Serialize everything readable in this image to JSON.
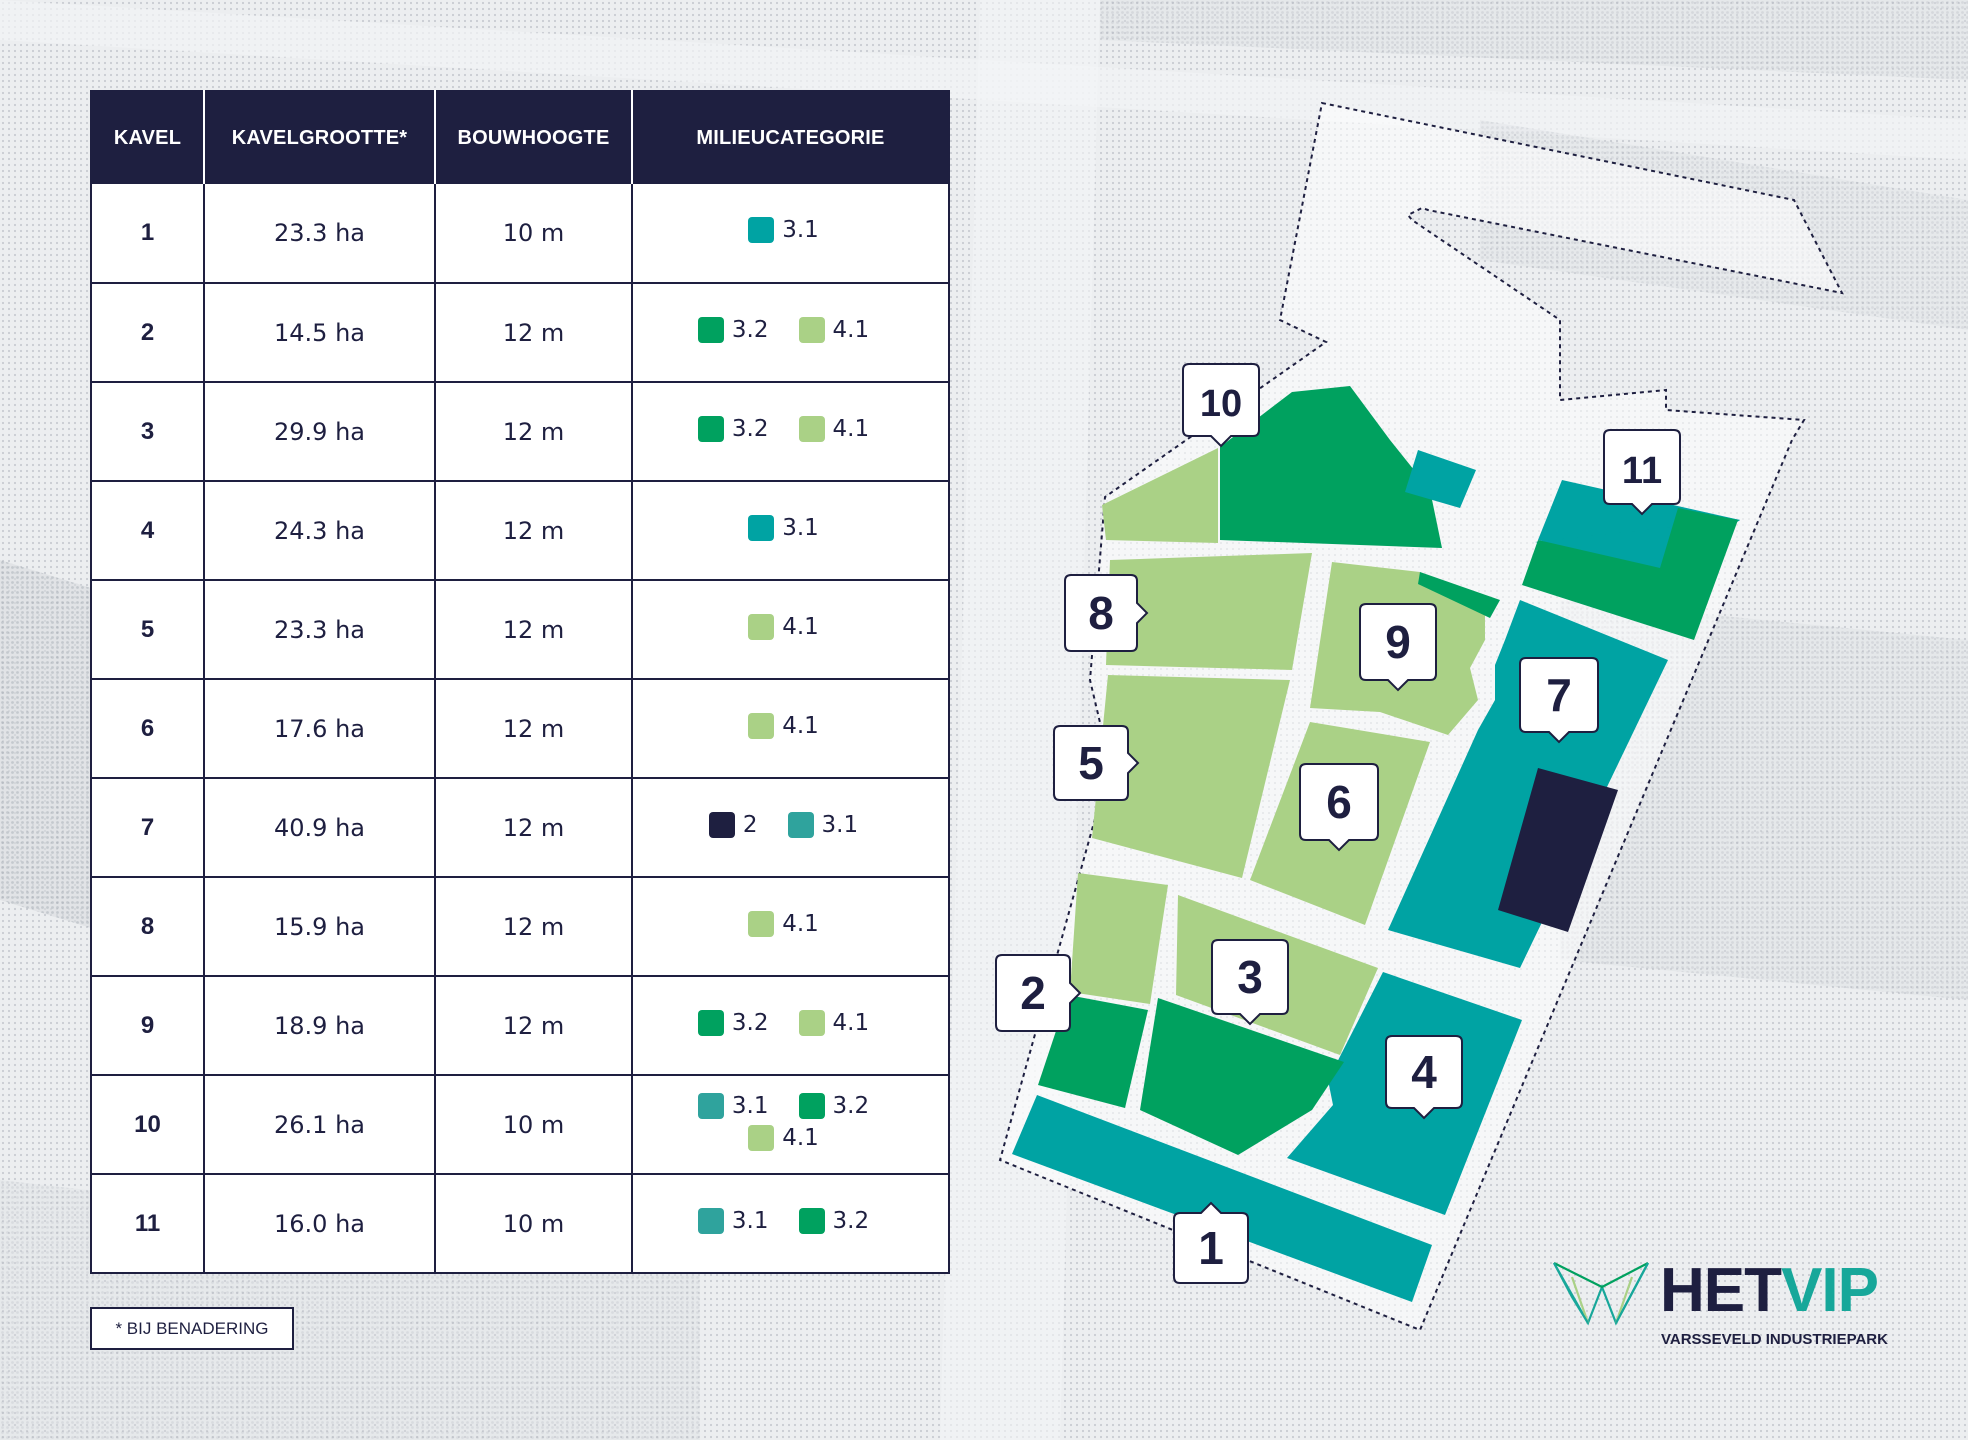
{
  "table": {
    "headers": [
      "KAVEL",
      "KAVELGROOTTE*",
      "BOUWHOOGTE",
      "MILIEUCATEGORIE"
    ],
    "rows": [
      {
        "kavel": "1",
        "size": "23.3 ha",
        "height": "10 m",
        "cats": [
          "3.1"
        ]
      },
      {
        "kavel": "2",
        "size": "14.5 ha",
        "height": "12 m",
        "cats": [
          "3.2",
          "4.1"
        ]
      },
      {
        "kavel": "3",
        "size": "29.9 ha",
        "height": "12 m",
        "cats": [
          "3.2",
          "4.1"
        ]
      },
      {
        "kavel": "4",
        "size": "24.3 ha",
        "height": "12 m",
        "cats": [
          "3.1"
        ]
      },
      {
        "kavel": "5",
        "size": "23.3 ha",
        "height": "12 m",
        "cats": [
          "4.1"
        ]
      },
      {
        "kavel": "6",
        "size": "17.6 ha",
        "height": "12 m",
        "cats": [
          "4.1"
        ]
      },
      {
        "kavel": "7",
        "size": "40.9 ha",
        "height": "12 m",
        "cats": [
          "2",
          "3.1"
        ]
      },
      {
        "kavel": "8",
        "size": "15.9 ha",
        "height": "12 m",
        "cats": [
          "4.1"
        ]
      },
      {
        "kavel": "9",
        "size": "18.9 ha",
        "height": "12 m",
        "cats": [
          "3.2",
          "4.1"
        ]
      },
      {
        "kavel": "10",
        "size": "26.1 ha",
        "height": "10 m",
        "cats": [
          "3.1",
          "3.2",
          "4.1"
        ]
      },
      {
        "kavel": "11",
        "size": "16.0 ha",
        "height": "10 m",
        "cats": [
          "3.1",
          "3.2"
        ]
      }
    ]
  },
  "footnote": "* BIJ BENADERING",
  "category_colors": {
    "2": "#1e1f40",
    "3.1": "#00a3a3",
    "3.2": "#00a15f",
    "4.1": "#aad186"
  },
  "map": {
    "plot_labels": [
      "1",
      "2",
      "3",
      "4",
      "5",
      "6",
      "7",
      "8",
      "9",
      "10",
      "11"
    ]
  },
  "logo": {
    "het": "HET",
    "vip": "VIP",
    "subtitle": "VARSSEVELD INDUSTRIEPARK"
  }
}
